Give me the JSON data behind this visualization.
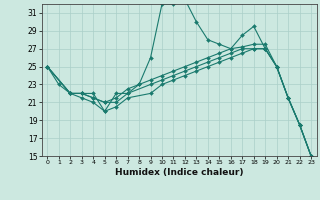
{
  "xlabel": "Humidex (Indice chaleur)",
  "xlim": [
    -0.5,
    23.5
  ],
  "ylim": [
    15,
    32
  ],
  "xticks": [
    0,
    1,
    2,
    3,
    4,
    5,
    6,
    7,
    8,
    9,
    10,
    11,
    12,
    13,
    14,
    15,
    16,
    17,
    18,
    19,
    20,
    21,
    22,
    23
  ],
  "yticks": [
    15,
    17,
    19,
    21,
    23,
    25,
    27,
    29,
    31
  ],
  "background_color": "#cce8e0",
  "grid_color": "#aacfc8",
  "line_color": "#1a7a6e",
  "line1_x": [
    0,
    1,
    2,
    3,
    4,
    5,
    6,
    7,
    8,
    9,
    10,
    11,
    12,
    13,
    14,
    15,
    16,
    17,
    18,
    19,
    20,
    21,
    22,
    23
  ],
  "line1_y": [
    25,
    23,
    22,
    22,
    22,
    20,
    22,
    22,
    23,
    26,
    32,
    32,
    32.5,
    30,
    28,
    27.5,
    27,
    28.5,
    29.5,
    27,
    25,
    21.5,
    18.5,
    15
  ],
  "line2_x": [
    0,
    2,
    3,
    4,
    5,
    6,
    7,
    8,
    9,
    10,
    11,
    12,
    13,
    14,
    15,
    16,
    17,
    18,
    19,
    20,
    21,
    22,
    23
  ],
  "line2_y": [
    25,
    22,
    22,
    21.5,
    21,
    21.5,
    22.5,
    23,
    23.5,
    24,
    24.5,
    25,
    25.5,
    26,
    26.5,
    27,
    27.2,
    27.5,
    27.5,
    25,
    21.5,
    18.5,
    15
  ],
  "line3_x": [
    0,
    2,
    3,
    4,
    5,
    6,
    7,
    9,
    10,
    11,
    12,
    13,
    14,
    15,
    16,
    17,
    18,
    19,
    20,
    21,
    22,
    23
  ],
  "line3_y": [
    25,
    22,
    22,
    21.5,
    21,
    21,
    22,
    23,
    23.5,
    24,
    24.5,
    25,
    25.5,
    26,
    26.5,
    27,
    27,
    27,
    25,
    21.5,
    18.5,
    15
  ],
  "line4_x": [
    0,
    2,
    3,
    4,
    5,
    6,
    7,
    9,
    10,
    11,
    12,
    13,
    14,
    15,
    16,
    17,
    18,
    19,
    20,
    21,
    22,
    23
  ],
  "line4_y": [
    25,
    22,
    21.5,
    21,
    20,
    20.5,
    21.5,
    22,
    23,
    23.5,
    24,
    24.5,
    25,
    25.5,
    26,
    26.5,
    27,
    27,
    25,
    21.5,
    18.5,
    15
  ]
}
